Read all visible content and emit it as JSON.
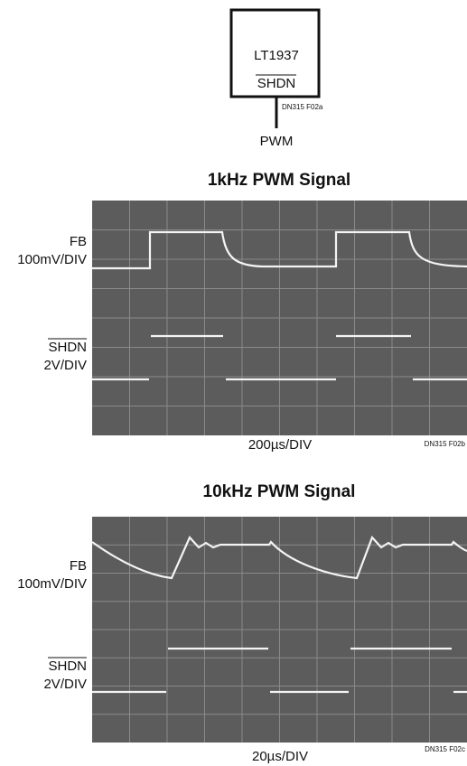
{
  "schematic": {
    "chip": "LT1937",
    "pin": "SHDN",
    "ref": "DN315 F02a",
    "input": "PWM"
  },
  "scopes": [
    {
      "title": "1kHz PWM Signal",
      "ch1_name": "FB",
      "ch1_scale": "100mV/DIV",
      "ch2_name": "SHDN",
      "ch2_scale": "2V/DIV",
      "timebase": "200µs/DIV",
      "ref": "DN315 F02b"
    },
    {
      "title": "10kHz PWM Signal",
      "ch1_name": "FB",
      "ch1_scale": "100mV/DIV",
      "ch2_name": "SHDN",
      "ch2_scale": "2V/DIV",
      "timebase": "20µs/DIV",
      "ref": "DN315 F02c"
    }
  ]
}
